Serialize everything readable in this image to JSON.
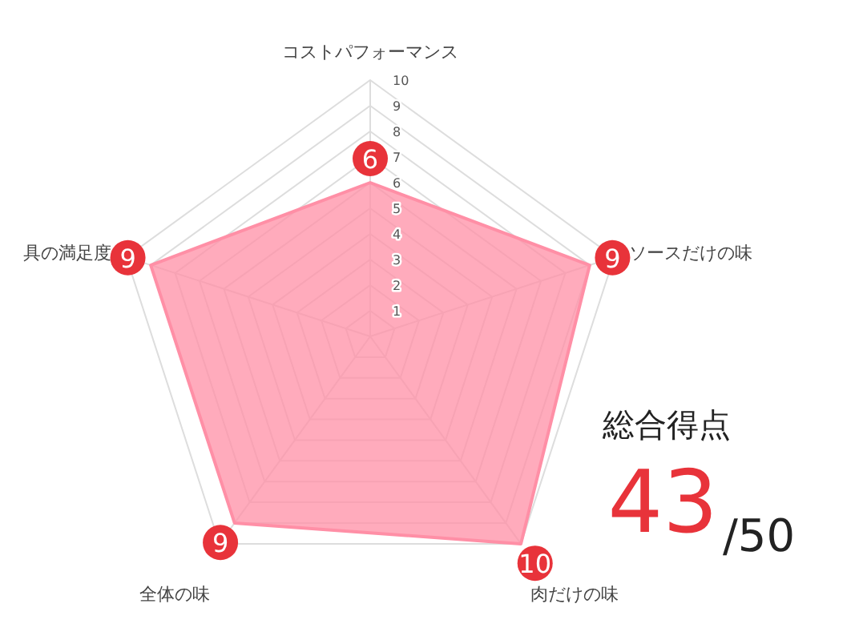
{
  "chart_data": {
    "type": "radar",
    "categories": [
      "コストパフォーマンス",
      "ソースだけの味",
      "肉だけの味",
      "全体の味",
      "具の満足度"
    ],
    "series": [
      {
        "color": "#ff8fa6",
        "values": [
          6,
          9,
          10,
          9,
          9
        ]
      }
    ],
    "ylim": [
      0,
      10
    ],
    "yticks": [
      1,
      2,
      3,
      4,
      5,
      6,
      7,
      8,
      9,
      10
    ],
    "grid": true,
    "data_labels": true,
    "annotations": [
      "総合得点",
      "43",
      "/50"
    ]
  }
}
